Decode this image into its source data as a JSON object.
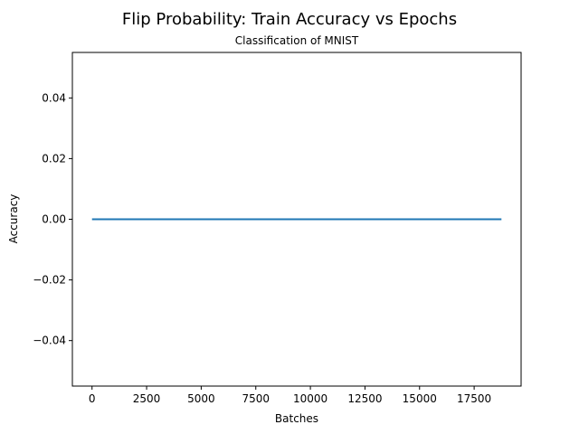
{
  "chart_data": {
    "type": "line",
    "title": "Flip Probability: Train Accuracy vs Epochs",
    "subtitle": "Classification of MNIST",
    "xlabel": "Batches",
    "ylabel": "Accuracy",
    "xlim": [
      -900,
      19650
    ],
    "ylim": [
      -0.055,
      0.055
    ],
    "x_ticks": [
      0,
      2500,
      5000,
      7500,
      10000,
      12500,
      15000,
      17500
    ],
    "x_tick_labels": [
      "0",
      "2500",
      "5000",
      "7500",
      "10000",
      "12500",
      "15000",
      "17500"
    ],
    "y_ticks": [
      -0.04,
      -0.02,
      0.0,
      0.02,
      0.04
    ],
    "y_tick_labels": [
      "−0.04",
      "−0.02",
      "0.00",
      "0.02",
      "0.04"
    ],
    "grid": false,
    "series": [
      {
        "color": "#1f77b4",
        "x": [
          0,
          18750
        ],
        "y": [
          0.0,
          0.0
        ]
      }
    ]
  }
}
